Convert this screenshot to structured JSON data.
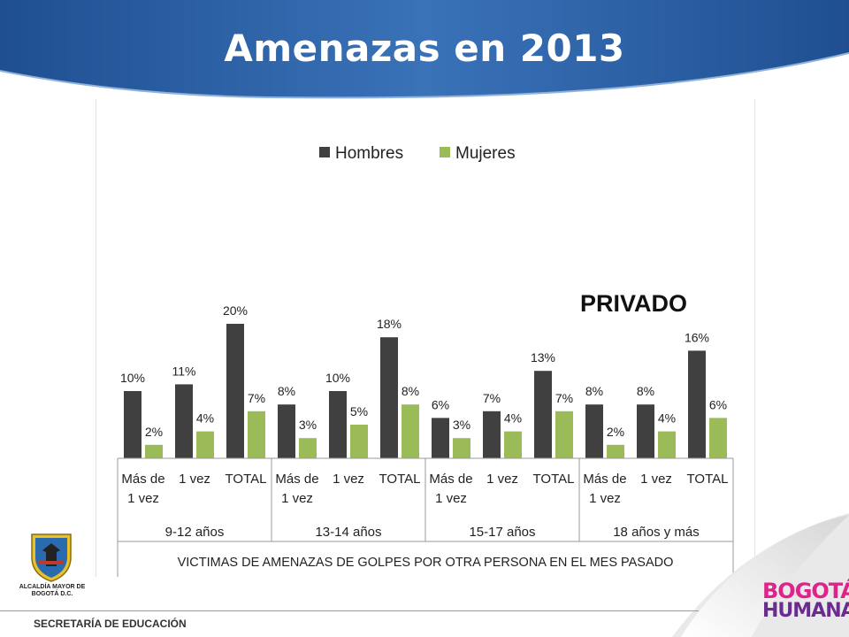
{
  "slide": {
    "title": "Amenazas en 2013",
    "footer": "SECRETARÍA DE EDUCACIÓN",
    "crest_caption": "ALCALDÍA MAYOR DE BOGOTÁ D.C.",
    "logo_line1": "BOGOTÁ",
    "logo_line2": "HUMANA",
    "colors": {
      "header_blue": "#2f63a8",
      "hombres": "#404040",
      "mujeres": "#9bbb59"
    }
  },
  "chart_data": {
    "type": "bar",
    "annotation": "PRIVADO",
    "categories": [
      "Más de 1 vez",
      "1 vez",
      "TOTAL",
      "Más de 1 vez",
      "1 vez",
      "TOTAL",
      "Más de 1 vez",
      "1 vez",
      "TOTAL",
      "Más de 1 vez",
      "1 vez",
      "TOTAL"
    ],
    "category_lines": [
      [
        "Más de",
        "1 vez"
      ],
      [
        "1 vez"
      ],
      [
        "TOTAL"
      ],
      [
        "Más de",
        "1 vez"
      ],
      [
        "1 vez"
      ],
      [
        "TOTAL"
      ],
      [
        "Más de",
        "1 vez"
      ],
      [
        "1 vez"
      ],
      [
        "TOTAL"
      ],
      [
        "Más de",
        "1 vez"
      ],
      [
        "1 vez"
      ],
      [
        "TOTAL"
      ]
    ],
    "groups": [
      "9-12 años",
      "13-14 años",
      "15-17 años",
      "18 años y más"
    ],
    "xlabel": "VICTIMAS DE AMENAZAS DE GOLPES POR OTRA PERSONA EN EL MES PASADO",
    "ylim": [
      0,
      20
    ],
    "legend_position": "top",
    "series": [
      {
        "name": "Hombres",
        "color": "#404040",
        "values": [
          10,
          11,
          20,
          8,
          10,
          18,
          6,
          7,
          13,
          8,
          8,
          16
        ]
      },
      {
        "name": "Mujeres",
        "color": "#9bbb59",
        "values": [
          2,
          4,
          7,
          3,
          5,
          8,
          3,
          4,
          7,
          2,
          4,
          6
        ]
      }
    ],
    "value_suffix": "%"
  }
}
